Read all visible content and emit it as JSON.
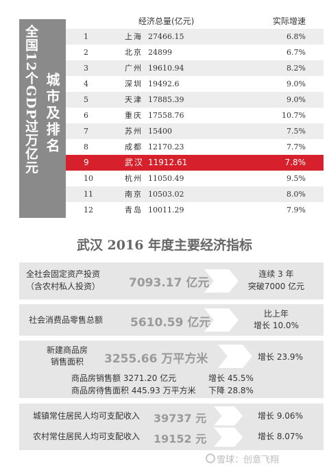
{
  "ranking": {
    "side_title": "全国12个GDP过万亿元",
    "side_subtitle": "城市及排名",
    "header_gdp": "经济总量(亿元)",
    "header_growth": "实际增速",
    "rows": [
      {
        "rank": "1",
        "city": "上海",
        "gdp": "27466.15",
        "rate": "6.8%"
      },
      {
        "rank": "2",
        "city": "北京",
        "gdp": "24899",
        "rate": "6.7%"
      },
      {
        "rank": "3",
        "city": "广州",
        "gdp": "19610.94",
        "rate": "8.2%"
      },
      {
        "rank": "4",
        "city": "深圳",
        "gdp": "19492.6",
        "rate": "9.0%"
      },
      {
        "rank": "5",
        "city": "天津",
        "gdp": "17885.39",
        "rate": "9.0%"
      },
      {
        "rank": "6",
        "city": "重庆",
        "gdp": "17558.76",
        "rate": "10.7%"
      },
      {
        "rank": "7",
        "city": "苏州",
        "gdp": "15400",
        "rate": "7.5%"
      },
      {
        "rank": "8",
        "city": "成都",
        "gdp": "12170.23",
        "rate": "7.7%"
      },
      {
        "rank": "9",
        "city": "武汉",
        "gdp": "11912.61",
        "rate": "7.8%"
      },
      {
        "rank": "10",
        "city": "杭州",
        "gdp": "11050.49",
        "rate": "9.5%"
      },
      {
        "rank": "11",
        "city": "南京",
        "gdp": "10503.02",
        "rate": "8.0%"
      },
      {
        "rank": "12",
        "city": "青岛",
        "gdp": "10011.29",
        "rate": "7.9%"
      }
    ],
    "highlight_color": "#d6202b"
  },
  "indicators": {
    "title": "武汉 2016 年度主要经济指标",
    "fixed_investment": {
      "label_line1": "全社会固定资产投资",
      "label_line2": "（含农村私人投资）",
      "value": "7093.17 亿元",
      "note_line1": "连续 3 年",
      "note_line2": "突破7000 亿元"
    },
    "retail": {
      "label": "社会消费品零售总额",
      "value": "5610.59 亿元",
      "note_line1": "比上年",
      "note_line2": "增长 10.0%"
    },
    "housing": {
      "label_line1": "新建商品房",
      "label_line2": "销售面积",
      "value": "3255.66 万平方米",
      "note": "增长 23.9%",
      "sub1_label": "商品房销售额 3271.20 亿元",
      "sub1_change": "增长 45.5%",
      "sub2_label": "商品房待售面积 445.93 万平方米",
      "sub2_change": "下降 28.8%"
    },
    "income": {
      "urban_label": "城镇常住居民人均可支配收入",
      "urban_value": "39737 元",
      "urban_note": "增长 9.06%",
      "rural_label": "农村常住居民人均可支配收入",
      "rural_value": "19152 元",
      "rural_note": "增长 8.07%"
    }
  },
  "watermark": "雪球：创意飞翔"
}
